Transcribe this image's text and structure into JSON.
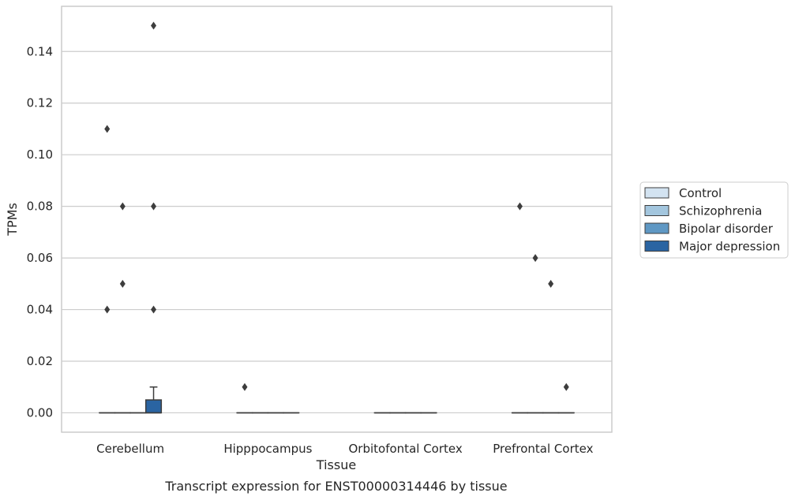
{
  "chart_data": {
    "type": "box",
    "title": "",
    "caption": "Transcript expression for ENST00000314446 by tissue",
    "xlabel": "Tissue",
    "ylabel": "TPMs",
    "ylim": [
      -0.0075,
      0.1575
    ],
    "yticks": [
      0.0,
      0.02,
      0.04,
      0.06,
      0.08,
      0.1,
      0.12,
      0.14
    ],
    "ytick_labels": [
      "0.00",
      "0.02",
      "0.04",
      "0.06",
      "0.08",
      "0.10",
      "0.12",
      "0.14"
    ],
    "grid": "horizontal",
    "legend_position": "right",
    "categories": [
      "Cerebellum",
      "Hipppocampus",
      "Orbitofontal Cortex",
      "Prefrontal Cortex"
    ],
    "series": [
      {
        "name": "Control",
        "color": "#d3e3f1",
        "boxes": [
          {
            "q1": 0.0,
            "median": 0.0,
            "q3": 0.0,
            "whisker_low": 0.0,
            "whisker_high": 0.0,
            "outliers": [
              0.04,
              0.11
            ]
          },
          {
            "q1": 0.0,
            "median": 0.0,
            "q3": 0.0,
            "whisker_low": 0.0,
            "whisker_high": 0.0,
            "outliers": [
              0.01
            ]
          },
          {
            "q1": 0.0,
            "median": 0.0,
            "q3": 0.0,
            "whisker_low": 0.0,
            "whisker_high": 0.0,
            "outliers": []
          },
          {
            "q1": 0.0,
            "median": 0.0,
            "q3": 0.0,
            "whisker_low": 0.0,
            "whisker_high": 0.0,
            "outliers": [
              0.08
            ]
          }
        ]
      },
      {
        "name": "Schizophrenia",
        "color": "#a3c6de",
        "boxes": [
          {
            "q1": 0.0,
            "median": 0.0,
            "q3": 0.0,
            "whisker_low": 0.0,
            "whisker_high": 0.0,
            "outliers": [
              0.05,
              0.08
            ]
          },
          {
            "q1": 0.0,
            "median": 0.0,
            "q3": 0.0,
            "whisker_low": 0.0,
            "whisker_high": 0.0,
            "outliers": []
          },
          {
            "q1": 0.0,
            "median": 0.0,
            "q3": 0.0,
            "whisker_low": 0.0,
            "whisker_high": 0.0,
            "outliers": []
          },
          {
            "q1": 0.0,
            "median": 0.0,
            "q3": 0.0,
            "whisker_low": 0.0,
            "whisker_high": 0.0,
            "outliers": [
              0.06
            ]
          }
        ]
      },
      {
        "name": "Bipolar disorder",
        "color": "#5f98c4",
        "boxes": [
          {
            "q1": 0.0,
            "median": 0.0,
            "q3": 0.0,
            "whisker_low": 0.0,
            "whisker_high": 0.0,
            "outliers": []
          },
          {
            "q1": 0.0,
            "median": 0.0,
            "q3": 0.0,
            "whisker_low": 0.0,
            "whisker_high": 0.0,
            "outliers": []
          },
          {
            "q1": 0.0,
            "median": 0.0,
            "q3": 0.0,
            "whisker_low": 0.0,
            "whisker_high": 0.0,
            "outliers": []
          },
          {
            "q1": 0.0,
            "median": 0.0,
            "q3": 0.0,
            "whisker_low": 0.0,
            "whisker_high": 0.0,
            "outliers": [
              0.05
            ]
          }
        ]
      },
      {
        "name": "Major depression",
        "color": "#2a64a2",
        "boxes": [
          {
            "q1": 0.0,
            "median": 0.0,
            "q3": 0.005,
            "whisker_low": 0.0,
            "whisker_high": 0.01,
            "outliers": [
              0.04,
              0.08,
              0.15
            ]
          },
          {
            "q1": 0.0,
            "median": 0.0,
            "q3": 0.0,
            "whisker_low": 0.0,
            "whisker_high": 0.0,
            "outliers": []
          },
          {
            "q1": 0.0,
            "median": 0.0,
            "q3": 0.0,
            "whisker_low": 0.0,
            "whisker_high": 0.0,
            "outliers": []
          },
          {
            "q1": 0.0,
            "median": 0.0,
            "q3": 0.0,
            "whisker_low": 0.0,
            "whisker_high": 0.0,
            "outliers": [
              0.01
            ]
          }
        ]
      }
    ]
  }
}
